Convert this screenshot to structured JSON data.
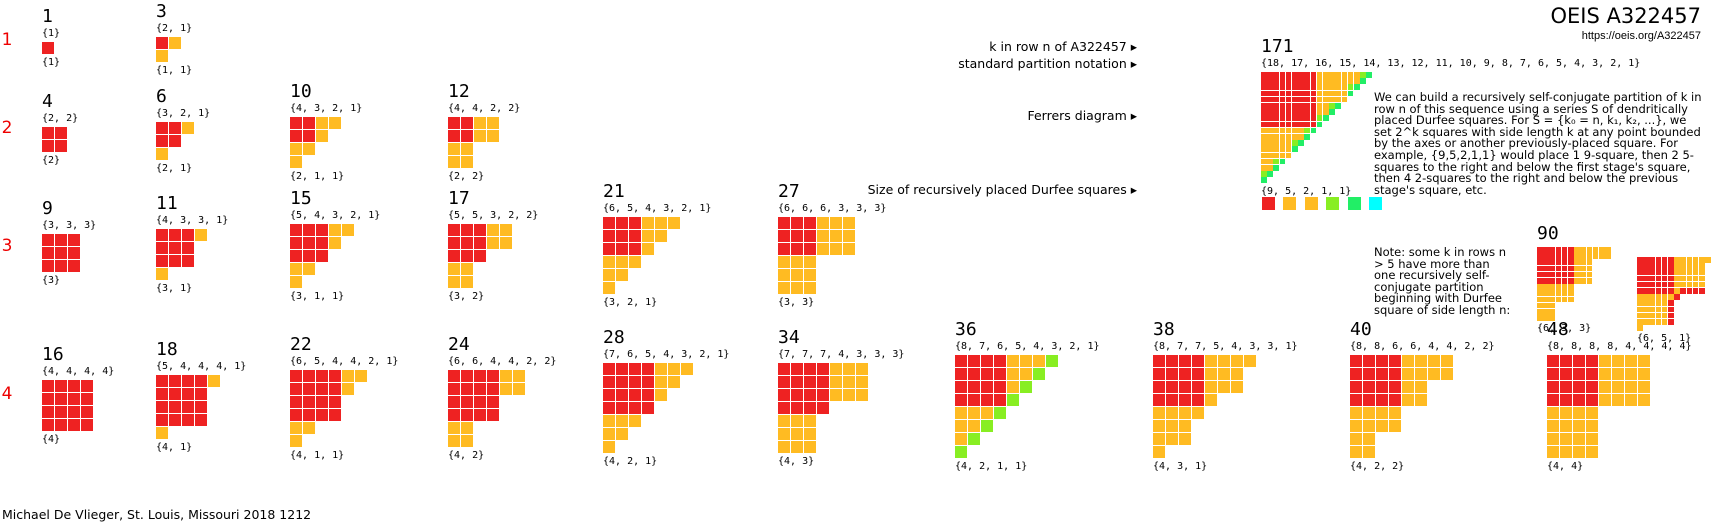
{
  "header": {
    "title": "OEIS A322457",
    "url": "https://oeis.org/A322457"
  },
  "credit": "Michael De Vlieger, St. Louis, Missouri 2018 1212",
  "row_labels": [
    "1",
    "2",
    "3",
    "4"
  ],
  "legend": {
    "k_label": "k in row n of A322457 ▸",
    "notation_label": "standard partition notation ▸",
    "ferrers_label": "Ferrers diagram ▸",
    "size_label": "Size of recursively placed Durfee squares ▸"
  },
  "description": "We can build a recursively self-conjugate partition of k in row n of this sequence using a series S of dendritically placed Durfee squares. For S = {k₀ = n, k₁, k₂, ...}, we set 2^k squares with side length k at any point bounded by the axes or another previously-placed square. For example, {9,5,2,1,1} would place 1 9-square, then 2 5-squares to the right and below the first stage's square, then 4 2-squares to the right and below the previous stage's square, etc.",
  "note": "Note: some k in rows n > 5 have more than one recursively self-conjugate partition beginning with Durfee square of side length n:",
  "colors": [
    "#ee2222",
    "#ffbb22",
    "#ffbb22",
    "#88ee22",
    "#22ee66",
    "#00ffff"
  ],
  "items": [
    {
      "k": "1",
      "notation": "{1}",
      "durfee": "{1}"
    },
    {
      "k": "3",
      "notation": "{2, 1}",
      "durfee": "{1, 1}"
    },
    {
      "k": "4",
      "notation": "{2, 2}",
      "durfee": "{2}"
    },
    {
      "k": "6",
      "notation": "{3, 2, 1}",
      "durfee": "{2, 1}"
    },
    {
      "k": "10",
      "notation": "{4, 3, 2, 1}",
      "durfee": "{2, 1, 1}"
    },
    {
      "k": "12",
      "notation": "{4, 4, 2, 2}",
      "durfee": "{2, 2}"
    },
    {
      "k": "9",
      "notation": "{3, 3, 3}",
      "durfee": "{3}"
    },
    {
      "k": "11",
      "notation": "{4, 3, 3, 1}",
      "durfee": "{3, 1}"
    },
    {
      "k": "15",
      "notation": "{5, 4, 3, 2, 1}",
      "durfee": "{3, 1, 1}"
    },
    {
      "k": "17",
      "notation": "{5, 5, 3, 2, 2}",
      "durfee": "{3, 2}"
    },
    {
      "k": "21",
      "notation": "{6, 5, 4, 3, 2, 1}",
      "durfee": "{3, 2, 1}"
    },
    {
      "k": "27",
      "notation": "{6, 6, 6, 3, 3, 3}",
      "durfee": "{3, 3}"
    },
    {
      "k": "16",
      "notation": "{4, 4, 4, 4}",
      "durfee": "{4}"
    },
    {
      "k": "18",
      "notation": "{5, 4, 4, 4, 1}",
      "durfee": "{4, 1}"
    },
    {
      "k": "22",
      "notation": "{6, 5, 4, 4, 2, 1}",
      "durfee": "{4, 1, 1}"
    },
    {
      "k": "24",
      "notation": "{6, 6, 4, 4, 2, 2}",
      "durfee": "{4, 2}"
    },
    {
      "k": "28",
      "notation": "{7, 6, 5, 4, 3, 2, 1}",
      "durfee": "{4, 2, 1}"
    },
    {
      "k": "34",
      "notation": "{7, 7, 7, 4, 3, 3, 3}",
      "durfee": "{4, 3}"
    },
    {
      "k": "36",
      "notation": "{8, 7, 6, 5, 4, 3, 2, 1}",
      "durfee": "{4, 2, 1, 1}"
    },
    {
      "k": "38",
      "notation": "{8, 7, 7, 5, 4, 3, 3, 1}",
      "durfee": "{4, 3, 1}"
    },
    {
      "k": "40",
      "notation": "{8, 8, 6, 6, 4, 4, 2, 2}",
      "durfee": "{4, 2, 2}"
    },
    {
      "k": "48",
      "notation": "{8, 8, 8, 8, 4, 4, 4, 4}",
      "durfee": "{4, 4}"
    },
    {
      "k": "171",
      "notation": "{18, 17, 16, 15, 14, 13, 12, 11, 10, 9, 8, 7, 6, 5, 4, 3, 2, 1}",
      "durfee": "{9, 5, 2, 1, 1}"
    },
    {
      "k": "90",
      "notation": "",
      "durfee": "{6, 3, 3}"
    },
    {
      "k": "",
      "notation": "",
      "durfee": "{6, 5, 1}"
    }
  ]
}
